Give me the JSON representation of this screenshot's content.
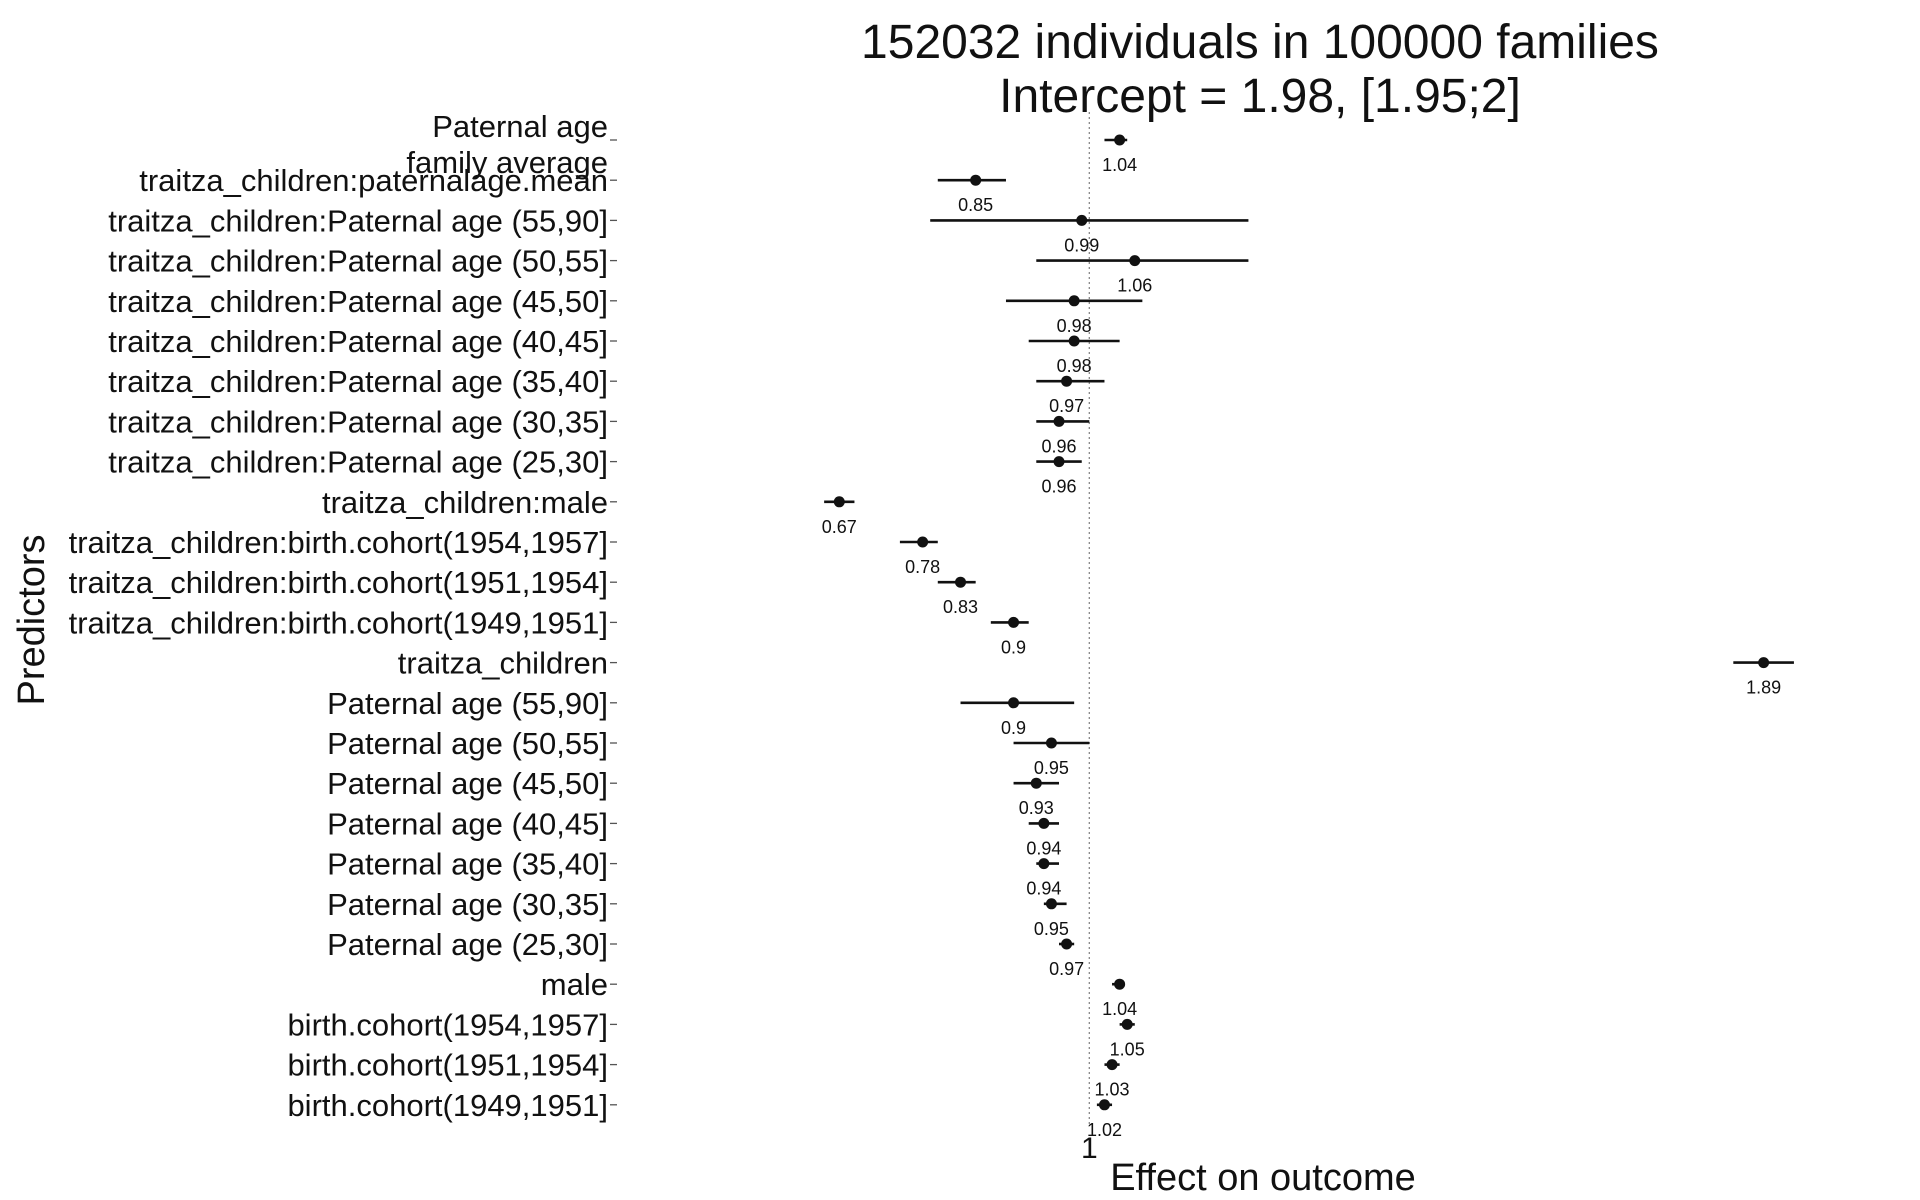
{
  "chart_data": {
    "type": "scatter",
    "subtype": "forest",
    "title": "152032 individuals in 100000 families",
    "subtitle": "Intercept = 1.98, [1.95;2]",
    "xlabel": "Effect on outcome",
    "ylabel": "Predictors",
    "x_ticks": [
      "1"
    ],
    "xlim": [
      0.37,
      2.07
    ],
    "reference_line": 1,
    "grid": false,
    "colors": {
      "points": "#111111",
      "reference_line": "#888888"
    },
    "predictors": [
      {
        "label": "Paternal age\nfamily average",
        "estimate": 1.04,
        "lower": 1.02,
        "upper": 1.05,
        "value_label": "1.04"
      },
      {
        "label": "traitza_children:paternalage.mean",
        "estimate": 0.85,
        "lower": 0.8,
        "upper": 0.89,
        "value_label": "0.85"
      },
      {
        "label": "traitza_children:Paternal age (55,90]",
        "estimate": 0.99,
        "lower": 0.79,
        "upper": 1.21,
        "value_label": "0.99"
      },
      {
        "label": "traitza_children:Paternal age (50,55]",
        "estimate": 1.06,
        "lower": 0.93,
        "upper": 1.21,
        "value_label": "1.06"
      },
      {
        "label": "traitza_children:Paternal age (45,50]",
        "estimate": 0.98,
        "lower": 0.89,
        "upper": 1.07,
        "value_label": "0.98"
      },
      {
        "label": "traitza_children:Paternal age (40,45]",
        "estimate": 0.98,
        "lower": 0.92,
        "upper": 1.04,
        "value_label": "0.98"
      },
      {
        "label": "traitza_children:Paternal age (35,40]",
        "estimate": 0.97,
        "lower": 0.93,
        "upper": 1.02,
        "value_label": "0.97"
      },
      {
        "label": "traitza_children:Paternal age (30,35]",
        "estimate": 0.96,
        "lower": 0.93,
        "upper": 1.0,
        "value_label": "0.96"
      },
      {
        "label": "traitza_children:Paternal age (25,30]",
        "estimate": 0.96,
        "lower": 0.93,
        "upper": 0.99,
        "value_label": "0.96"
      },
      {
        "label": "traitza_children:male",
        "estimate": 0.67,
        "lower": 0.65,
        "upper": 0.69,
        "value_label": "0.67"
      },
      {
        "label": "traitza_children:birth.cohort(1954,1957]",
        "estimate": 0.78,
        "lower": 0.75,
        "upper": 0.8,
        "value_label": "0.78"
      },
      {
        "label": "traitza_children:birth.cohort(1951,1954]",
        "estimate": 0.83,
        "lower": 0.8,
        "upper": 0.85,
        "value_label": "0.83"
      },
      {
        "label": "traitza_children:birth.cohort(1949,1951]",
        "estimate": 0.9,
        "lower": 0.87,
        "upper": 0.92,
        "value_label": "0.9"
      },
      {
        "label": "traitza_children",
        "estimate": 1.89,
        "lower": 1.85,
        "upper": 1.93,
        "value_label": "1.89"
      },
      {
        "label": "Paternal age (55,90]",
        "estimate": 0.9,
        "lower": 0.83,
        "upper": 0.98,
        "value_label": "0.9"
      },
      {
        "label": "Paternal age (50,55]",
        "estimate": 0.95,
        "lower": 0.9,
        "upper": 1.0,
        "value_label": "0.95"
      },
      {
        "label": "Paternal age (45,50]",
        "estimate": 0.93,
        "lower": 0.9,
        "upper": 0.96,
        "value_label": "0.93"
      },
      {
        "label": "Paternal age (40,45]",
        "estimate": 0.94,
        "lower": 0.92,
        "upper": 0.96,
        "value_label": "0.94"
      },
      {
        "label": "Paternal age (35,40]",
        "estimate": 0.94,
        "lower": 0.93,
        "upper": 0.96,
        "value_label": "0.94"
      },
      {
        "label": "Paternal age (30,35]",
        "estimate": 0.95,
        "lower": 0.94,
        "upper": 0.97,
        "value_label": "0.95"
      },
      {
        "label": "Paternal age (25,30]",
        "estimate": 0.97,
        "lower": 0.96,
        "upper": 0.98,
        "value_label": "0.97"
      },
      {
        "label": "male",
        "estimate": 1.04,
        "lower": 1.03,
        "upper": 1.04,
        "value_label": "1.04"
      },
      {
        "label": "birth.cohort(1954,1957]",
        "estimate": 1.05,
        "lower": 1.04,
        "upper": 1.06,
        "value_label": "1.05"
      },
      {
        "label": "birth.cohort(1951,1954]",
        "estimate": 1.03,
        "lower": 1.02,
        "upper": 1.04,
        "value_label": "1.03"
      },
      {
        "label": "birth.cohort(1949,1951]",
        "estimate": 1.02,
        "lower": 1.01,
        "upper": 1.03,
        "value_label": "1.02"
      }
    ]
  }
}
